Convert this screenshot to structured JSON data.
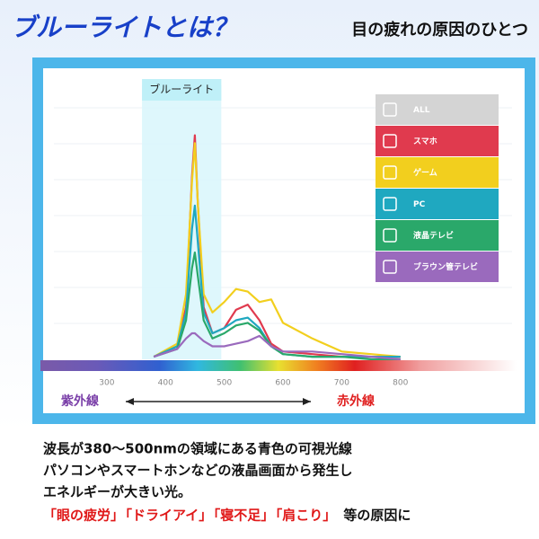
{
  "header": {
    "title": "ブルーライトとは？",
    "subtitle": "目の疲れの原因のひとつ"
  },
  "chart_data": {
    "type": "line",
    "band_label": "ブルーライト",
    "band": [
      360,
      495
    ],
    "x": [
      380,
      420,
      435,
      445,
      450,
      455,
      465,
      480,
      500,
      520,
      540,
      560,
      580,
      600,
      650,
      700,
      750,
      800
    ],
    "xlim": [
      210,
      990
    ],
    "ylim": [
      0,
      100
    ],
    "xticks": [
      300,
      400,
      500,
      600,
      700,
      800
    ],
    "legend_extra": {
      "name": "ALL",
      "color": "#d4d4d4"
    },
    "series": [
      {
        "name": "スマホ",
        "color": "#e03a4e",
        "values": [
          1,
          5,
          20,
          70,
          86,
          60,
          20,
          10,
          12,
          19,
          21,
          15,
          6,
          3,
          2,
          1,
          1,
          1
        ]
      },
      {
        "name": "ゲーム",
        "color": "#f2cf1e",
        "values": [
          1,
          6,
          25,
          68,
          83,
          60,
          25,
          18,
          22,
          27,
          26,
          22,
          23,
          14,
          8,
          3,
          2,
          1
        ]
      },
      {
        "name": "PC",
        "color": "#1fa8c0",
        "values": [
          1,
          5,
          18,
          50,
          59,
          45,
          18,
          10,
          12,
          15,
          16,
          12,
          5,
          2,
          1,
          1,
          1,
          1
        ]
      },
      {
        "name": "液晶テレビ",
        "color": "#2aa86a",
        "values": [
          1,
          4,
          15,
          35,
          41,
          32,
          15,
          8,
          10,
          13,
          14,
          11,
          5,
          2,
          1,
          1,
          0,
          0
        ]
      },
      {
        "name": "ブラウン管テレビ",
        "color": "#9a6abd",
        "values": [
          1,
          4,
          8,
          10,
          10,
          9,
          7,
          5,
          5,
          6,
          7,
          9,
          5,
          3,
          3,
          2,
          1,
          0
        ]
      }
    ],
    "uv_label": "紫外線",
    "ir_label": "赤外線"
  },
  "footer": {
    "lines": [
      "波長が380～500nmの領域にある青色の可視光線",
      "パソコンやスマートホンなどの液晶画面から発生し",
      "エネルギーが大きい光。"
    ],
    "highlights": [
      "「眼の疲労」",
      "「ドライアイ」",
      "「寝不足」",
      "「肩こり」"
    ],
    "rest": "等の原因に"
  }
}
